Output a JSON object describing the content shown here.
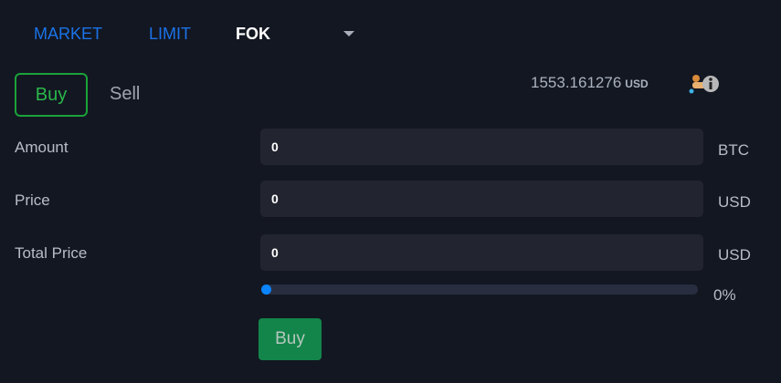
{
  "order_types": [
    {
      "label": "MARKET"
    },
    {
      "label": "LIMIT"
    },
    {
      "label": "FOK"
    }
  ],
  "side": {
    "buy": "Buy",
    "sell": "Sell"
  },
  "balance": {
    "value": "1553.161276",
    "currency": "USD",
    "icon": "wallet-info-icon"
  },
  "fields": [
    {
      "label": "Amount",
      "value": "0",
      "unit": "BTC"
    },
    {
      "label": "Price",
      "value": "0",
      "unit": "USD"
    },
    {
      "label": "Total Price",
      "value": "0",
      "unit": "USD"
    }
  ],
  "slider": {
    "percent": 0,
    "label": "0%"
  },
  "submit_label": "Buy",
  "colors": {
    "accent": "#1a73e8",
    "buy": "#1aa33a",
    "submit": "#13854a",
    "background": "#131722"
  }
}
